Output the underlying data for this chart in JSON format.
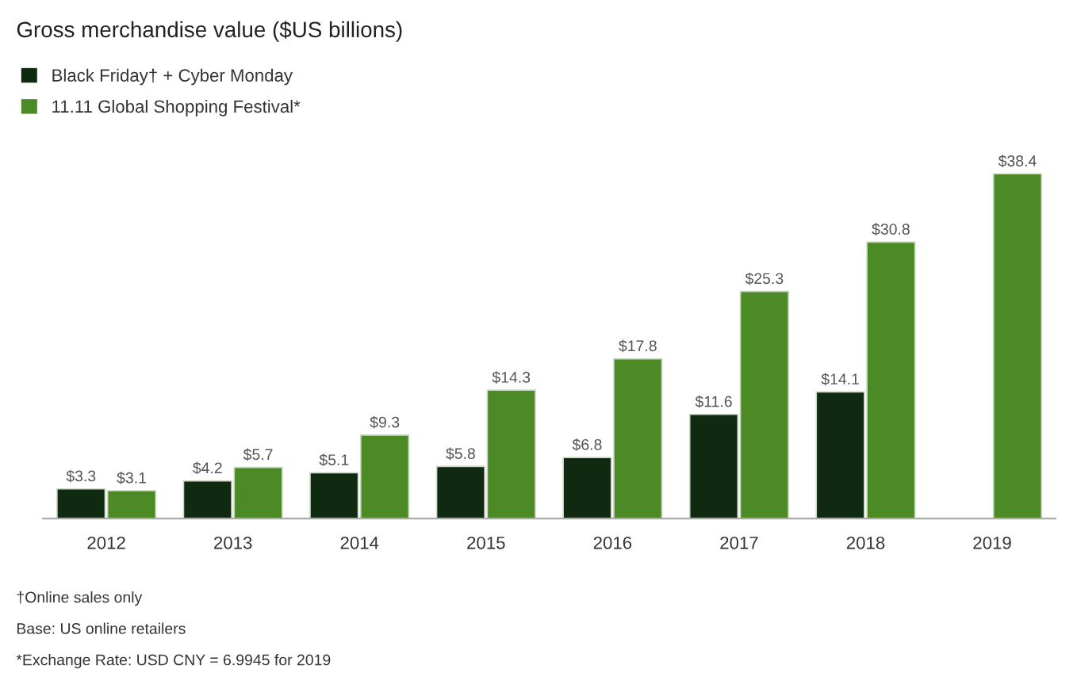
{
  "chart_data": {
    "type": "bar",
    "title": "Gross merchandise value ($US billions)",
    "categories": [
      "2012",
      "2013",
      "2014",
      "2015",
      "2016",
      "2017",
      "2018",
      "2019"
    ],
    "series": [
      {
        "name": "Black Friday† + Cyber Monday",
        "color": "#0f2a10",
        "values": [
          3.3,
          4.2,
          5.1,
          5.8,
          6.8,
          11.6,
          14.1,
          null
        ],
        "value_labels": [
          "$3.3",
          "$4.2",
          "$5.1",
          "$5.8",
          "$6.8",
          "$11.6",
          "$14.1",
          null
        ]
      },
      {
        "name": "11.11 Global Shopping Festival*",
        "color": "#4b8a25",
        "values": [
          3.1,
          5.7,
          9.3,
          14.3,
          17.8,
          25.3,
          30.8,
          38.4
        ],
        "value_labels": [
          "$3.1",
          "$5.7",
          "$9.3",
          "$14.3",
          "$17.8",
          "$25.3",
          "$30.8",
          "$38.4"
        ]
      }
    ],
    "legend": "top left",
    "annotations": [
      "†Online sales only",
      "Base: US online retailers",
      "*Exchange Rate: USD CNY = 6.9945 for 2019"
    ]
  }
}
